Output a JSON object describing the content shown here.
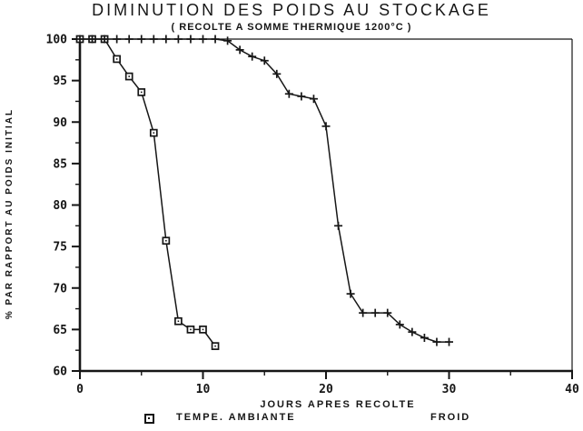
{
  "title": "DIMINUTION DES POIDS AU STOCKAGE",
  "subtitle": "( RECOLTE A SOMME THERMIQUE 1200°C )",
  "colors": {
    "ink": "#161616",
    "background": "#ffffff"
  },
  "legend": {
    "ambiante_label": "TEMPE. AMBIANTE",
    "ambiante_marker": "square-icon",
    "froid_label": "FROID"
  },
  "chart_data": {
    "type": "line",
    "title": "DIMINUTION DES POIDS AU STOCKAGE",
    "subtitle": "( RECOLTE A SOMME THERMIQUE 1200°C )",
    "xlabel": "JOURS APRES RECOLTE",
    "ylabel": "% PAR RAPPORT AU POIDS INITIAL",
    "xlim": [
      0,
      40
    ],
    "ylim": [
      60,
      100
    ],
    "x_ticks": [
      0,
      10,
      20,
      30,
      40
    ],
    "y_ticks": [
      60,
      65,
      70,
      75,
      80,
      85,
      90,
      95,
      100
    ],
    "x_minor_ticks": [
      5,
      15,
      25,
      35
    ],
    "y_minor_ticks": [
      62.5,
      67.5,
      72.5,
      77.5,
      82.5,
      87.5,
      92.5,
      97.5
    ],
    "grid": false,
    "legend_position": "bottom",
    "series": [
      {
        "name": "TEMPE. AMBIANTE",
        "marker": "square",
        "x": [
          0,
          1,
          2,
          3,
          4,
          5,
          6,
          7,
          8,
          9,
          10,
          11
        ],
        "y": [
          100,
          100,
          100,
          97.6,
          95.5,
          93.6,
          88.7,
          75.7,
          66,
          65,
          65,
          63
        ]
      },
      {
        "name": "FROID",
        "marker": "plus",
        "x": [
          0,
          1,
          2,
          3,
          4,
          5,
          6,
          7,
          8,
          9,
          10,
          11,
          12,
          13,
          14,
          15,
          16,
          17,
          18,
          19,
          20,
          21,
          22,
          23,
          24,
          25,
          26,
          27,
          28,
          29,
          30
        ],
        "y": [
          100,
          100,
          100,
          100,
          100,
          100,
          100,
          100,
          100,
          100,
          100,
          100,
          99.8,
          98.7,
          97.9,
          97.4,
          95.8,
          93.4,
          93.1,
          92.8,
          89.5,
          77.5,
          69.3,
          67,
          67,
          67,
          65.6,
          64.7,
          64,
          63.5,
          63.5
        ]
      }
    ]
  }
}
